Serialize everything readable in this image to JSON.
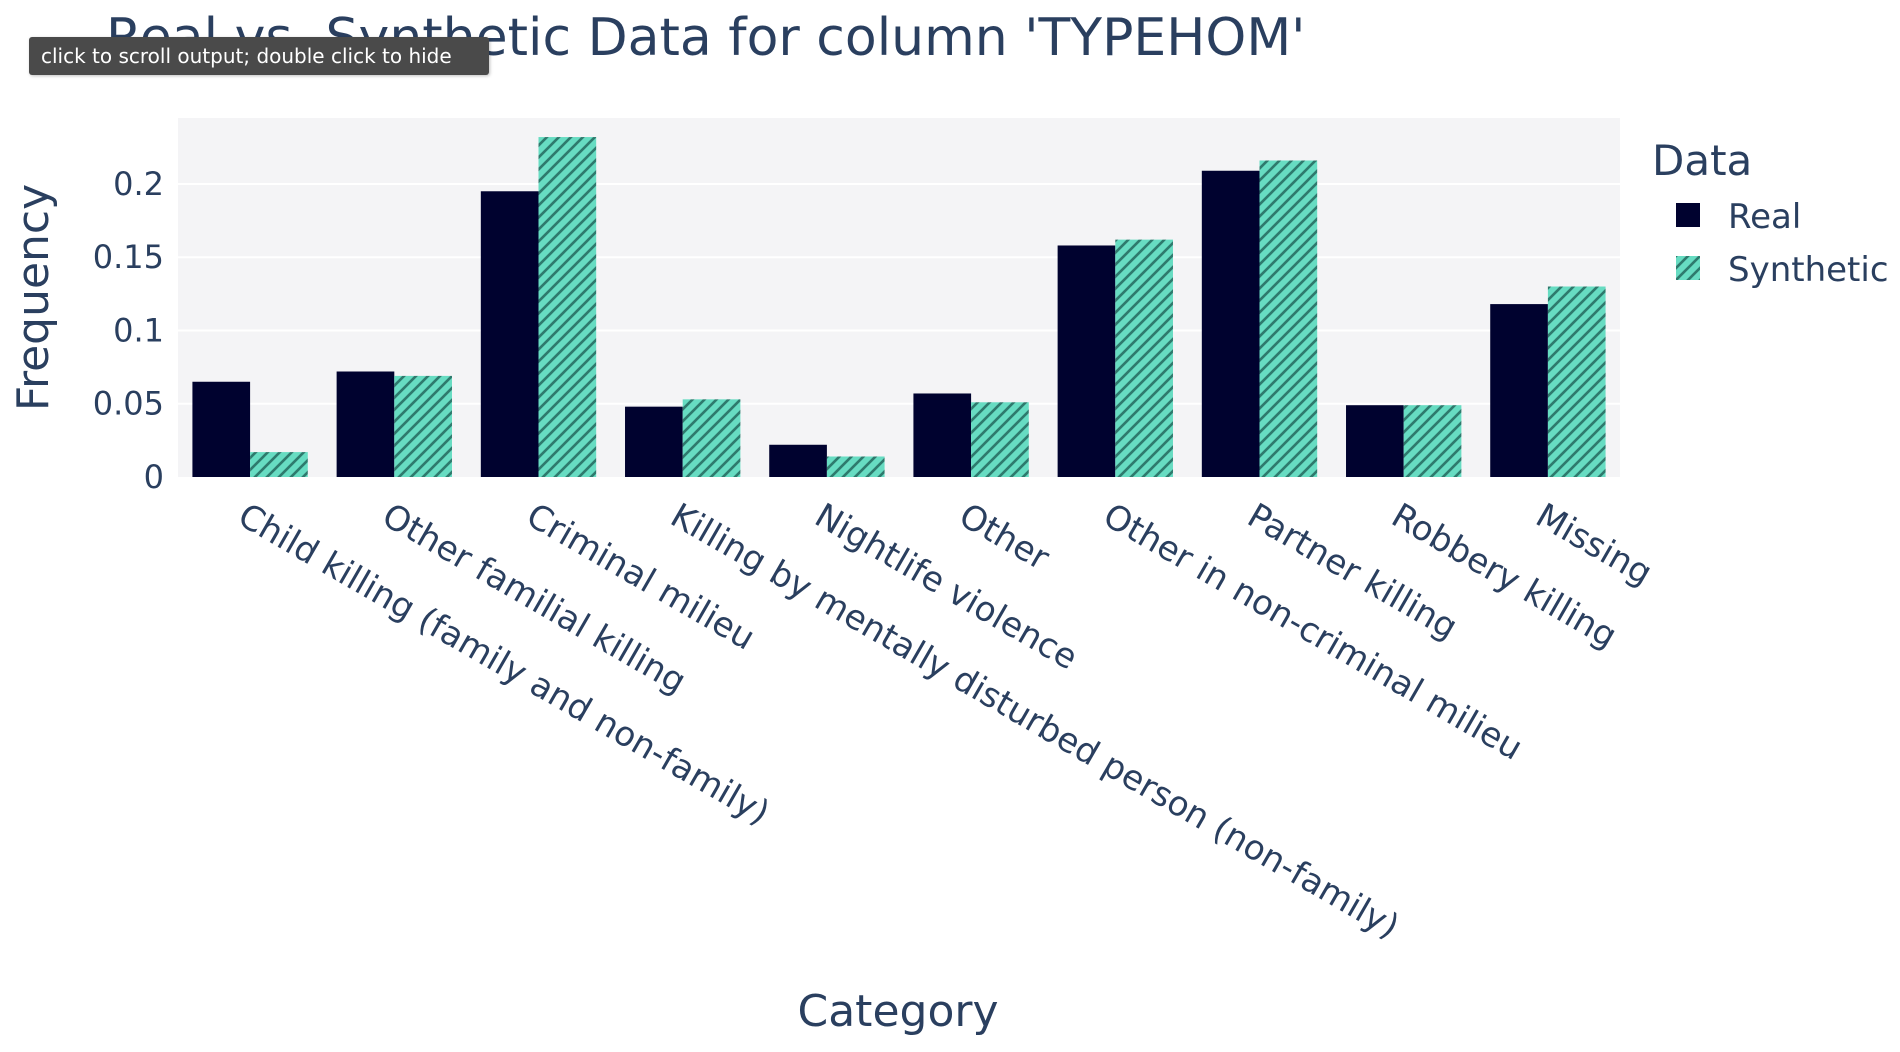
{
  "tooltip": {
    "text": "click to scroll output; double click to hide"
  },
  "colors": {
    "real": "#00022f",
    "synthetic": "#67dcc2",
    "hatch": "#2e7a6d",
    "plot_bg": "#f4f4f6",
    "grid": "#ffffff",
    "text": "#2a3f5f"
  },
  "chart_data": {
    "type": "bar",
    "title": "Real vs. Synthetic Data for column 'TYPEHOM'",
    "xlabel": "Category",
    "ylabel": "Frequency",
    "ylim": [
      0,
      0.245
    ],
    "yticks": [
      0,
      0.05,
      0.1,
      0.15,
      0.2
    ],
    "ytick_labels": [
      "0",
      "0.05",
      "0.1",
      "0.15",
      "0.2"
    ],
    "grid": true,
    "categories": [
      "Child killing (family and non-family)",
      "Other familial killing",
      "Criminal milieu",
      "Killing by mentally disturbed person (non-family)",
      "Nightlife violence",
      "Other",
      "Other in non-criminal milieu",
      "Partner killing",
      "Robbery killing",
      "Missing"
    ],
    "series": [
      {
        "name": "Real",
        "color_key": "real",
        "pattern": "solid",
        "values": [
          0.065,
          0.072,
          0.195,
          0.048,
          0.022,
          0.057,
          0.158,
          0.209,
          0.049,
          0.118
        ]
      },
      {
        "name": "Synthetic",
        "color_key": "synthetic",
        "pattern": "diagonal-hatch",
        "values": [
          0.017,
          0.069,
          0.232,
          0.053,
          0.014,
          0.051,
          0.162,
          0.216,
          0.049,
          0.13
        ]
      }
    ],
    "legend": {
      "title": "Data",
      "placement": "right"
    }
  }
}
